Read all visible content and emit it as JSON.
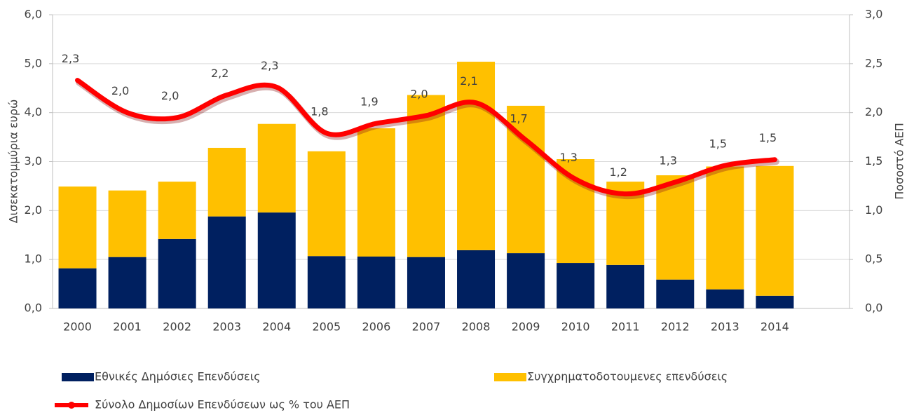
{
  "chart_data": {
    "type": "bar_line",
    "categories": [
      "2000",
      "2001",
      "2002",
      "2003",
      "2004",
      "2005",
      "2006",
      "2007",
      "2008",
      "2009",
      "2010",
      "2011",
      "2012",
      "2013",
      "2014"
    ],
    "series": [
      {
        "name": "Εθνικές Δημόσιες Επενδύσεις",
        "color": "#002060",
        "type": "bar",
        "values": [
          0.82,
          1.05,
          1.42,
          1.88,
          1.96,
          1.07,
          1.06,
          1.05,
          1.19,
          1.13,
          0.93,
          0.89,
          0.59,
          0.39,
          0.26
        ]
      },
      {
        "name": "Συγχρηματοδοτουμενες επενδύσεις",
        "color": "#ffc000",
        "type": "bar",
        "values": [
          1.67,
          1.36,
          1.17,
          1.4,
          1.81,
          2.14,
          2.62,
          3.31,
          3.85,
          3.01,
          2.12,
          1.7,
          2.13,
          2.51,
          2.65
        ]
      },
      {
        "name": "Σύνολο Δημοσίων Επενδύσεων ως % του ΑΕΠ",
        "color": "#ff0000",
        "type": "line",
        "axis": "y2",
        "values": [
          2.33,
          2.0,
          1.95,
          2.18,
          2.26,
          1.79,
          1.89,
          1.97,
          2.1,
          1.72,
          1.32,
          1.17,
          1.29,
          1.46,
          1.52
        ],
        "value_labels": [
          "2,3",
          "2,0",
          "2,0",
          "2,2",
          "2,3",
          "1,8",
          "1,9",
          "2,0",
          "2,1",
          "1,7",
          "1,3",
          "1,2",
          "1,3",
          "1,5",
          "1,5"
        ]
      }
    ],
    "ylabel": "Δισεκατομμύρια ευρώ",
    "y2label": "Ποσοστό ΑΕΠ",
    "ylim": [
      0,
      6
    ],
    "yticks": [
      {
        "value": 0,
        "label": "0,0"
      },
      {
        "value": 1,
        "label": "1,0"
      },
      {
        "value": 2,
        "label": "2,0"
      },
      {
        "value": 3,
        "label": "3,0"
      },
      {
        "value": 4,
        "label": "4,0"
      },
      {
        "value": 5,
        "label": "5,0"
      },
      {
        "value": 6,
        "label": "6,0"
      }
    ],
    "y2lim": [
      0,
      3
    ],
    "y2ticks": [
      {
        "value": 0,
        "label": "0,0"
      },
      {
        "value": 0.5,
        "label": "0,5"
      },
      {
        "value": 1,
        "label": "1,0"
      },
      {
        "value": 1.5,
        "label": "1,5"
      },
      {
        "value": 2,
        "label": "2,0"
      },
      {
        "value": 2.5,
        "label": "2,5"
      },
      {
        "value": 3,
        "label": "3,0"
      }
    ],
    "grid": true,
    "legend": "bottom"
  }
}
